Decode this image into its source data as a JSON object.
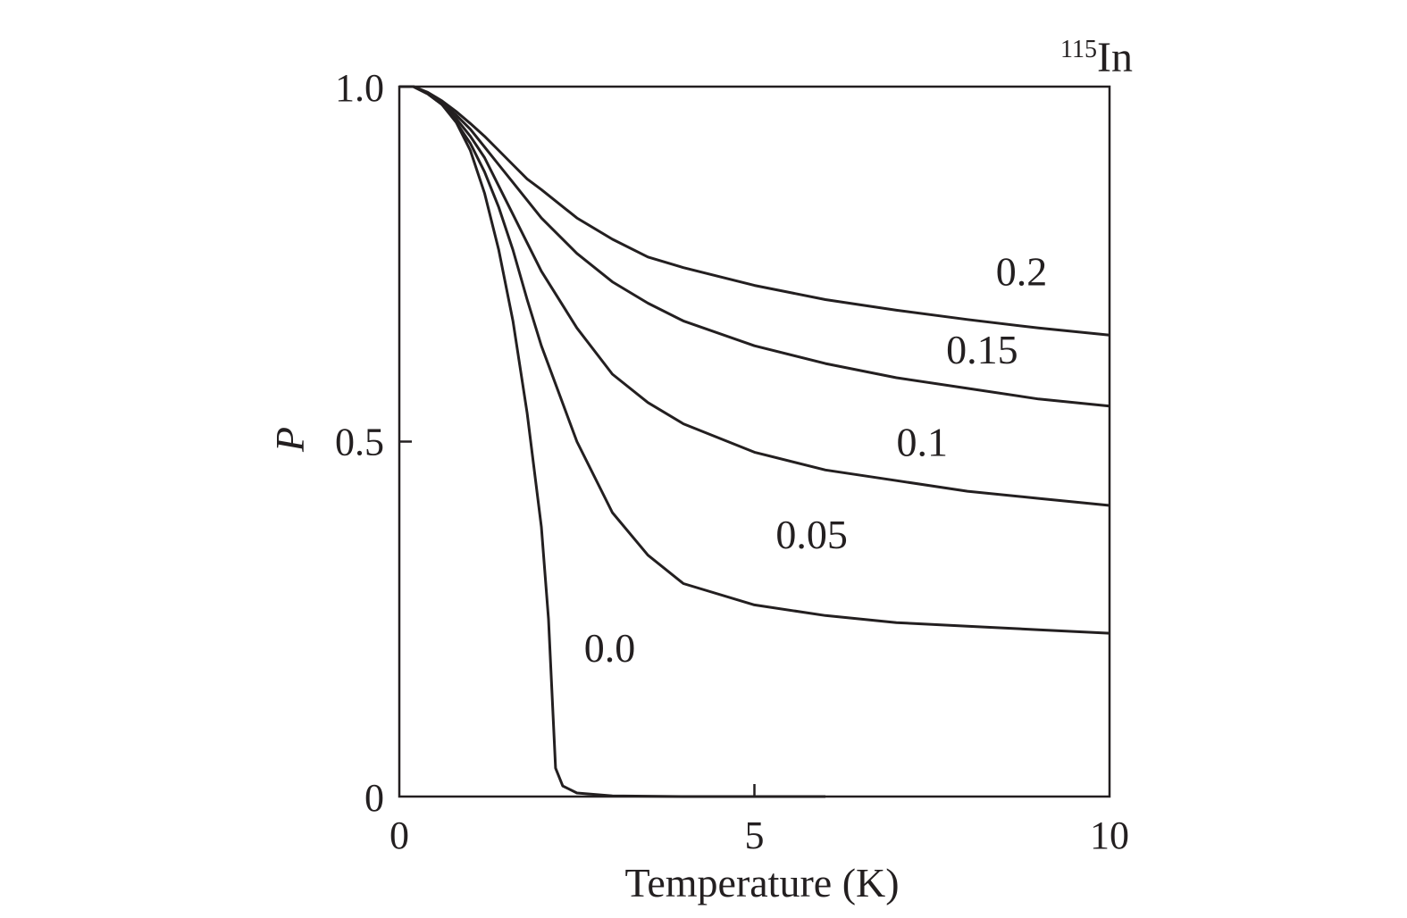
{
  "chart_data": {
    "type": "line",
    "title": "",
    "corner_label": {
      "superscript": "115",
      "text": "In"
    },
    "xlabel": "Temperature (K)",
    "ylabel": "P",
    "xlim": [
      0,
      10
    ],
    "ylim": [
      0,
      1
    ],
    "xticks": [
      {
        "value": 0,
        "label": "0"
      },
      {
        "value": 5,
        "label": "5"
      },
      {
        "value": 10,
        "label": "10"
      }
    ],
    "yticks": [
      {
        "value": 0,
        "label": "0"
      },
      {
        "value": 0.5,
        "label": "0.5"
      },
      {
        "value": 1,
        "label": "1.0"
      }
    ],
    "grid": false,
    "series": [
      {
        "name": "0.0",
        "label_at": {
          "x": 2.6,
          "y": 0.19
        },
        "points": [
          [
            0,
            1.0
          ],
          [
            0.2,
            1.0
          ],
          [
            0.4,
            0.99
          ],
          [
            0.6,
            0.975
          ],
          [
            0.8,
            0.95
          ],
          [
            1.0,
            0.91
          ],
          [
            1.2,
            0.85
          ],
          [
            1.4,
            0.77
          ],
          [
            1.6,
            0.67
          ],
          [
            1.8,
            0.54
          ],
          [
            2.0,
            0.38
          ],
          [
            2.1,
            0.25
          ],
          [
            2.2,
            0.04
          ],
          [
            2.3,
            0.015
          ],
          [
            2.5,
            0.005
          ],
          [
            3.0,
            0.001
          ],
          [
            4.0,
            0.0
          ],
          [
            6.0,
            0.0
          ]
        ]
      },
      {
        "name": "0.05",
        "label_at": {
          "x": 5.3,
          "y": 0.35
        },
        "points": [
          [
            0,
            1.0
          ],
          [
            0.2,
            1.0
          ],
          [
            0.4,
            0.99
          ],
          [
            0.6,
            0.975
          ],
          [
            0.8,
            0.95
          ],
          [
            1.0,
            0.92
          ],
          [
            1.2,
            0.88
          ],
          [
            1.4,
            0.83
          ],
          [
            1.6,
            0.77
          ],
          [
            1.8,
            0.7
          ],
          [
            2.0,
            0.635
          ],
          [
            2.5,
            0.5
          ],
          [
            3.0,
            0.4
          ],
          [
            3.5,
            0.34
          ],
          [
            4.0,
            0.3
          ],
          [
            5.0,
            0.27
          ],
          [
            6.0,
            0.255
          ],
          [
            7.0,
            0.245
          ],
          [
            8.0,
            0.24
          ],
          [
            9.0,
            0.235
          ],
          [
            10.0,
            0.23
          ]
        ]
      },
      {
        "name": "0.1",
        "label_at": {
          "x": 7.0,
          "y": 0.48
        },
        "points": [
          [
            0,
            1.0
          ],
          [
            0.2,
            1.0
          ],
          [
            0.4,
            0.99
          ],
          [
            0.6,
            0.975
          ],
          [
            0.8,
            0.955
          ],
          [
            1.0,
            0.93
          ],
          [
            1.2,
            0.9
          ],
          [
            1.4,
            0.86
          ],
          [
            1.6,
            0.82
          ],
          [
            1.8,
            0.78
          ],
          [
            2.0,
            0.74
          ],
          [
            2.5,
            0.66
          ],
          [
            3.0,
            0.595
          ],
          [
            3.5,
            0.555
          ],
          [
            4.0,
            0.525
          ],
          [
            5.0,
            0.485
          ],
          [
            6.0,
            0.46
          ],
          [
            7.0,
            0.445
          ],
          [
            8.0,
            0.43
          ],
          [
            9.0,
            0.42
          ],
          [
            10.0,
            0.41
          ]
        ]
      },
      {
        "name": "0.15",
        "label_at": {
          "x": 7.7,
          "y": 0.61
        },
        "points": [
          [
            0,
            1.0
          ],
          [
            0.2,
            1.0
          ],
          [
            0.4,
            0.99
          ],
          [
            0.6,
            0.978
          ],
          [
            0.8,
            0.96
          ],
          [
            1.0,
            0.94
          ],
          [
            1.2,
            0.915
          ],
          [
            1.4,
            0.89
          ],
          [
            1.6,
            0.865
          ],
          [
            1.8,
            0.84
          ],
          [
            2.0,
            0.815
          ],
          [
            2.5,
            0.765
          ],
          [
            3.0,
            0.725
          ],
          [
            3.5,
            0.695
          ],
          [
            4.0,
            0.67
          ],
          [
            5.0,
            0.635
          ],
          [
            6.0,
            0.61
          ],
          [
            7.0,
            0.59
          ],
          [
            8.0,
            0.575
          ],
          [
            9.0,
            0.56
          ],
          [
            10.0,
            0.55
          ]
        ]
      },
      {
        "name": "0.2",
        "label_at": {
          "x": 8.4,
          "y": 0.72
        },
        "points": [
          [
            0,
            1.0
          ],
          [
            0.2,
            1.0
          ],
          [
            0.4,
            0.992
          ],
          [
            0.6,
            0.98
          ],
          [
            0.8,
            0.965
          ],
          [
            1.0,
            0.948
          ],
          [
            1.2,
            0.93
          ],
          [
            1.4,
            0.91
          ],
          [
            1.6,
            0.89
          ],
          [
            1.8,
            0.87
          ],
          [
            2.0,
            0.855
          ],
          [
            2.5,
            0.815
          ],
          [
            3.0,
            0.785
          ],
          [
            3.5,
            0.76
          ],
          [
            4.0,
            0.745
          ],
          [
            5.0,
            0.72
          ],
          [
            6.0,
            0.7
          ],
          [
            7.0,
            0.685
          ],
          [
            8.0,
            0.672
          ],
          [
            9.0,
            0.66
          ],
          [
            10.0,
            0.65
          ]
        ]
      }
    ]
  }
}
